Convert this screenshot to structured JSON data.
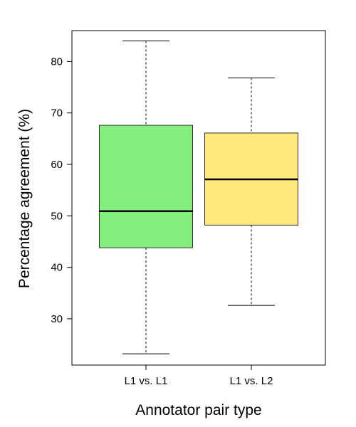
{
  "chart_data": {
    "type": "box",
    "title": "",
    "xlabel": "Annotator pair type",
    "ylabel": "Percentage agreement (%)",
    "ylim": [
      21.0,
      86.0
    ],
    "yticks": [
      30,
      40,
      50,
      60,
      70,
      80
    ],
    "grid": false,
    "legend": "none",
    "categories": [
      "L1 vs. L1",
      "L1 vs. L2"
    ],
    "boxes": [
      {
        "category": "L1 vs. L1",
        "min": 23.2,
        "q1": 43.8,
        "median": 50.9,
        "q3": 67.6,
        "max": 84.0,
        "color": "#83EE7E"
      },
      {
        "category": "L1 vs. L2",
        "min": 32.6,
        "q1": 48.2,
        "median": 57.1,
        "q3": 66.1,
        "max": 76.8,
        "color": "#FFE97E"
      }
    ]
  }
}
